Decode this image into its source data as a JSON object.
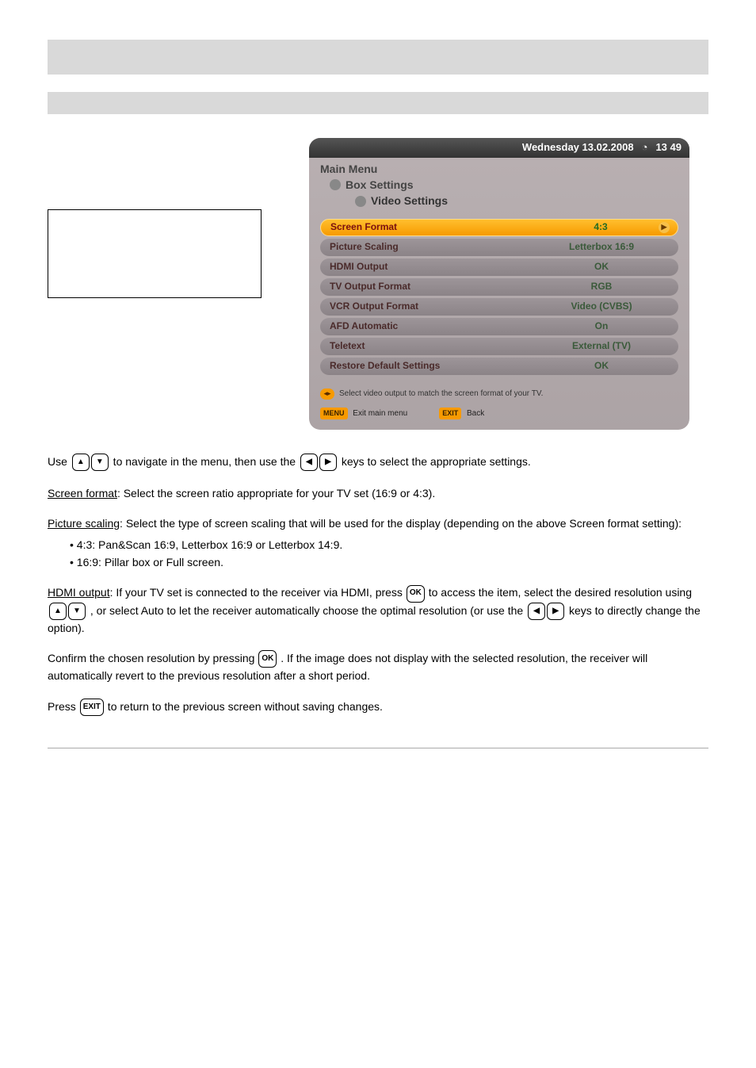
{
  "section": {
    "underlined_1": "Screen format",
    "underlined_2": "Picture scaling",
    "underlined_3": "HDMI output"
  },
  "doc": {
    "para_nav": "Use } to navigate in the menu, then use the } keys to select the appropriate settings.",
    "screen_format_body": ": Select the screen ratio appropriate for your TV set (16:9 or 4:3).",
    "scaling_l1": ": Select the type of screen scaling that will be used for the display (depending on the above Screen format setting):",
    "scaling_4_3": "• 4:3: Pan&Scan 16:9, Letterbox 16:9 or Letterbox 14:9.",
    "scaling_16_9": "• 16:9: Pillar box or Full screen.",
    "hdmi_l1": ": If your TV set is connected to the receiver via HDMI, press ",
    "hdmi_l2": " to access the item, select the desired resolution using ",
    "hdmi_l3": ", or select Auto to let the receiver automatically choose the optimal resolution (or use the ",
    "hdmi_l4": " keys to directly change the option).",
    "hdmi_l5": "Confirm the chosen resolution by pressing ",
    "hdmi_l6": ". If the image does not display with the selected resolution, the receiver will automatically revert to the previous resolution after a short period.",
    "exit_line": "Press } to return to the previous screen without saving changes."
  },
  "keys": {
    "up": "▲",
    "down": "▼",
    "left": "◀",
    "right": "▶",
    "ok": "OK",
    "exit": "EXIT"
  },
  "osd": {
    "topbar": {
      "date": "Wednesday 13.02.2008",
      "time_icon": "◔",
      "time": "13 49"
    },
    "crumbs": {
      "l1": "Main Menu",
      "l2": "Box Settings",
      "l3": "Video Settings"
    },
    "rows": [
      {
        "label": "Screen Format",
        "value": "4:3",
        "selected": true
      },
      {
        "label": "Picture Scaling",
        "value": "Letterbox 16:9",
        "selected": false
      },
      {
        "label": "HDMI Output",
        "value": "OK",
        "selected": false
      },
      {
        "label": "TV Output Format",
        "value": "RGB",
        "selected": false
      },
      {
        "label": "VCR Output Format",
        "value": "Video (CVBS)",
        "selected": false
      },
      {
        "label": "AFD Automatic",
        "value": "On",
        "selected": false
      },
      {
        "label": "Teletext",
        "value": "External (TV)",
        "selected": false
      },
      {
        "label": "Restore Default Settings",
        "value": "OK",
        "selected": false
      }
    ],
    "hint": "Select video output to match the screen format of your TV.",
    "footer": {
      "menu_pill": "MENU",
      "menu_text": "Exit main menu",
      "exit_pill": "EXIT",
      "exit_text": "Back"
    },
    "colors": {
      "selected_bg_top": "#ffbf2e",
      "selected_bg_bot": "#f79a00",
      "row_bg_top": "#9d9599",
      "row_bg_bot": "#8b8387",
      "panel_bg_top": "#b9b0b2",
      "panel_bg_bot": "#aca3a5",
      "topbar_bg_top": "#555555",
      "topbar_bg_bot": "#333333",
      "selected_label": "#7a1010",
      "selected_value": "#246b24",
      "row_label": "#4a2a2a",
      "row_value": "#3a5a3a"
    }
  }
}
